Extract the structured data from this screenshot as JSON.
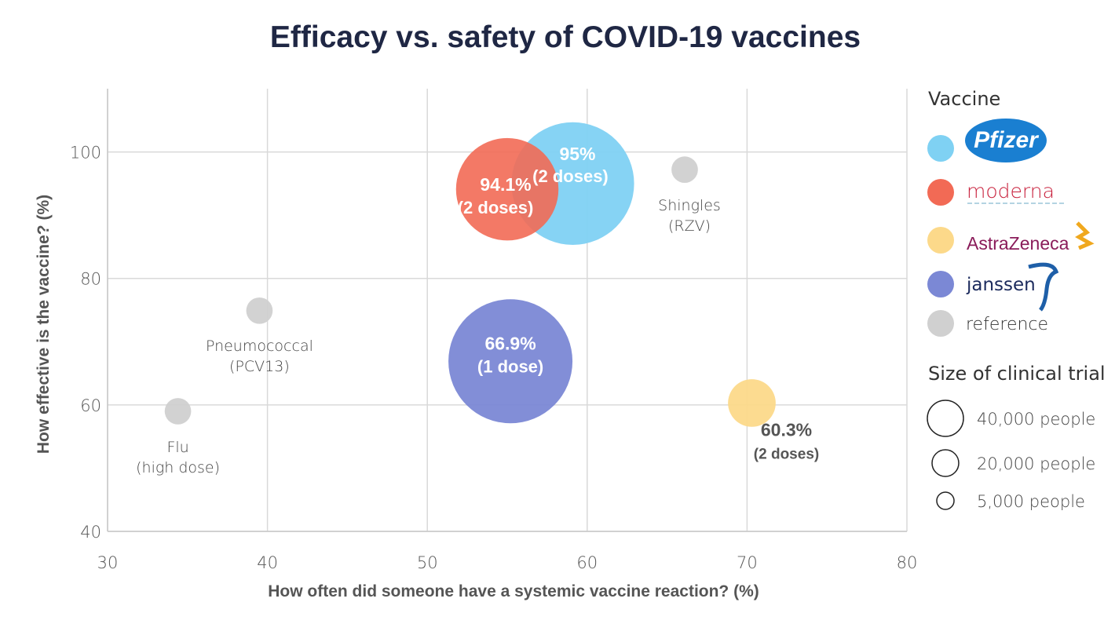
{
  "chart_data": {
    "type": "scatter",
    "subtype": "bubble",
    "title": "Efficacy vs. safety of COVID-19 vaccines",
    "xlabel": "How often did someone have a systemic vaccine reaction? (%)",
    "ylabel": "How effective is the vaccine? (%)",
    "xlim": [
      30,
      80
    ],
    "ylim": [
      40,
      110
    ],
    "xticks": [
      30,
      40,
      50,
      60,
      70,
      80
    ],
    "yticks": [
      40,
      60,
      80,
      100
    ],
    "grid": true,
    "legend_position": "right",
    "legend_title": "Vaccine",
    "size_legend_title": "Size of clinical trial",
    "size_legend": [
      {
        "label": "40,000 people",
        "size": 40000
      },
      {
        "label": "20,000 people",
        "size": 20000
      },
      {
        "label": "5,000 people",
        "size": 5000
      }
    ],
    "series": [
      {
        "name": "Pfizer",
        "color": "#7fd1f3",
        "x": 59.1,
        "y": 95,
        "size": 43000,
        "label": "95%",
        "label2": "(2 doses)"
      },
      {
        "name": "Moderna",
        "color": "#f26a55",
        "x": 55,
        "y": 94.1,
        "size": 30000,
        "label": "94.1%",
        "label2": "(2 doses)"
      },
      {
        "name": "AstraZeneca",
        "color": "#fcd98a",
        "x": 70.3,
        "y": 60.3,
        "size": 6500,
        "label": "60.3%",
        "label2": "(2 doses)"
      },
      {
        "name": "Janssen",
        "color": "#7b88d5",
        "x": 55.2,
        "y": 66.9,
        "size": 44000,
        "label": "66.9%",
        "label2": "(1 dose)"
      },
      {
        "name": "reference",
        "color": "#d0d0d0",
        "x": 66.1,
        "y": 97.2,
        "size": 2000,
        "label": "Shingles",
        "label2": "(RZV)"
      },
      {
        "name": "reference",
        "color": "#d0d0d0",
        "x": 39.5,
        "y": 74.9,
        "size": 2000,
        "label": "Pneumococcal",
        "label2": "(PCV13)"
      },
      {
        "name": "reference",
        "color": "#d0d0d0",
        "x": 34.4,
        "y": 59,
        "size": 2000,
        "label": "Flu",
        "label2": "(high dose)"
      }
    ],
    "legend_items": [
      {
        "label": "Pfizer",
        "color": "#7fd1f3"
      },
      {
        "label": "moderna",
        "color": "#f26a55"
      },
      {
        "label": "AstraZeneca",
        "color": "#fcd98a"
      },
      {
        "label": "janssen",
        "color": "#7b88d5"
      },
      {
        "label": "reference",
        "color": "#d0d0d0"
      }
    ]
  }
}
